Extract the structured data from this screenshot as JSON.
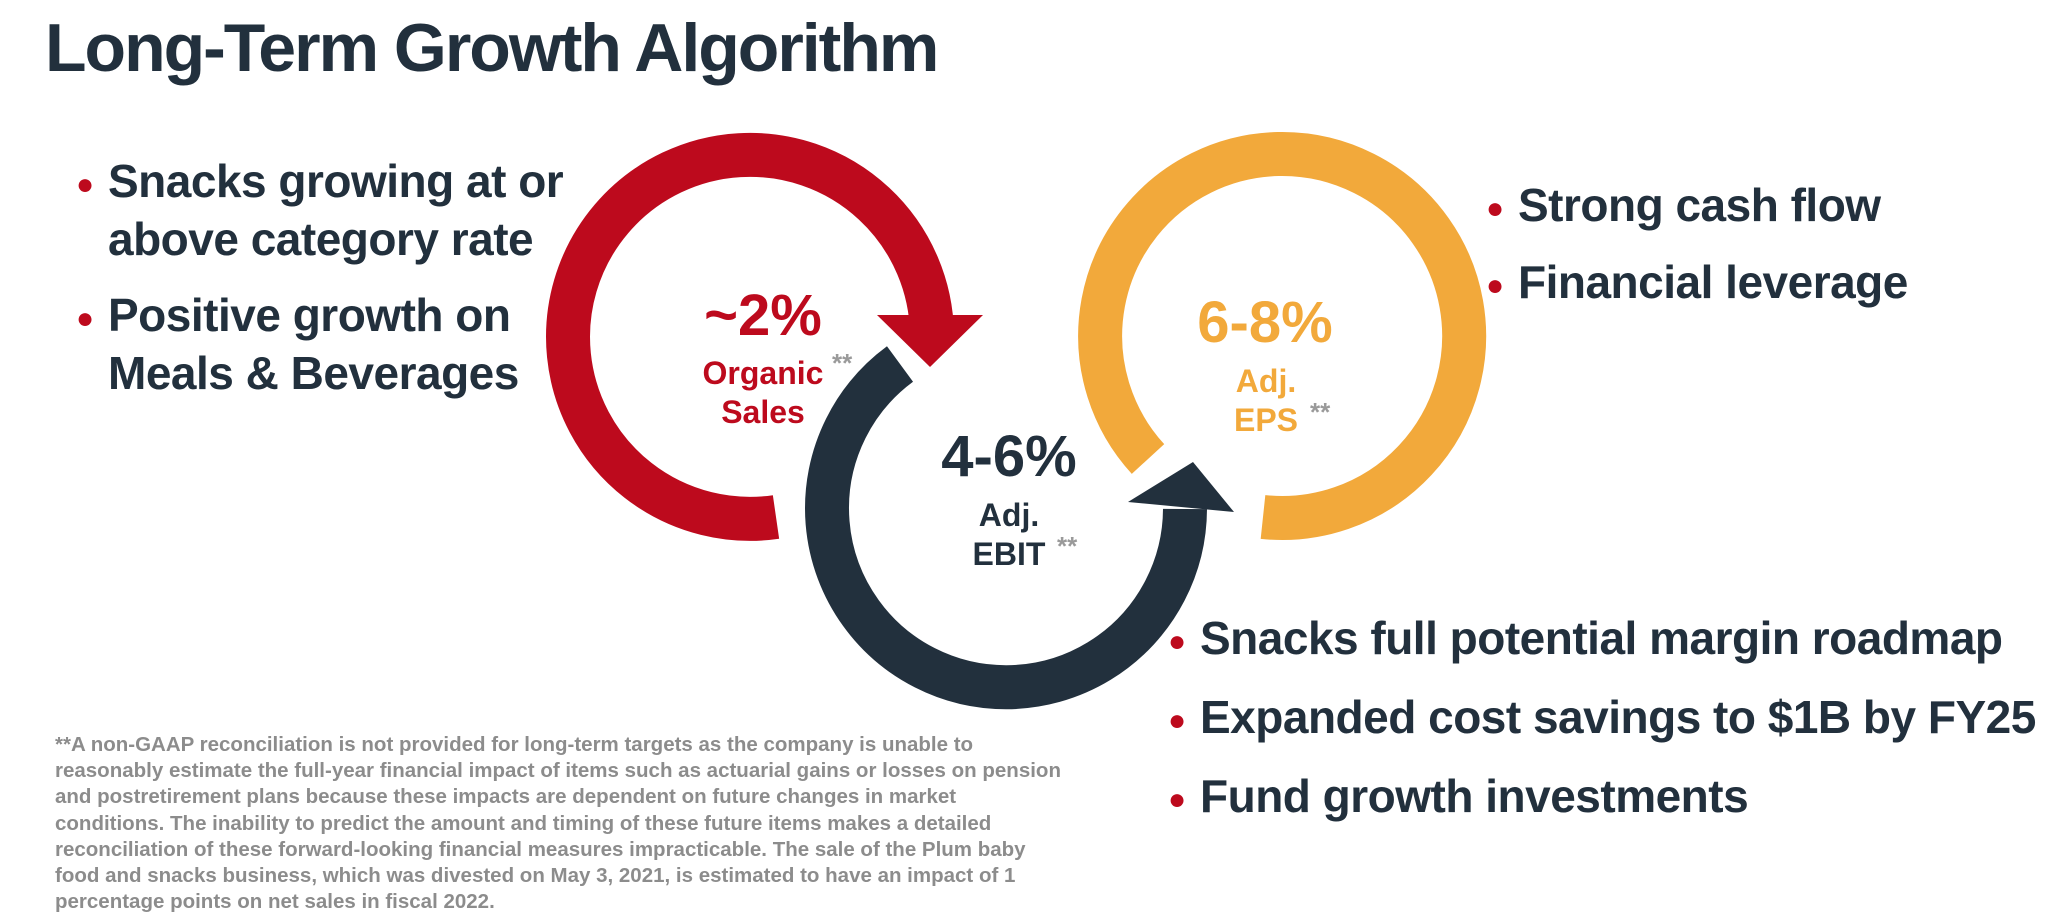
{
  "title": "Long-Term Growth Algorithm",
  "left_bullets": [
    "Snacks growing at or above category rate",
    "Positive growth on Meals & Beverages"
  ],
  "right_top_bullets": [
    "Strong cash flow",
    "Financial leverage"
  ],
  "right_bottom_bullets": [
    "Snacks full potential margin roadmap",
    "Expanded cost savings to $1B by FY25",
    "Fund growth investments"
  ],
  "diagram": {
    "organic_sales": {
      "value": "~2%",
      "label_line1": "Organic",
      "label_line2": "Sales",
      "marker": "**",
      "color": "#bd0a1d"
    },
    "adj_ebit": {
      "value": "4-6%",
      "label_line1": "Adj.",
      "label_line2": "EBIT",
      "marker": "**",
      "color": "#22303d"
    },
    "adj_eps": {
      "value": "6-8%",
      "label_line1": "Adj.",
      "label_line2": "EPS",
      "marker": "**",
      "color": "#f2a93b"
    }
  },
  "footnote": "**A non-GAAP reconciliation is not provided for long-term targets as the company is unable to reasonably estimate the full-year financial impact of items such as actuarial gains or losses on pension and postretirement plans because these impacts are dependent on future changes in market conditions. The inability to predict the amount and timing of these future items makes a detailed reconciliation of these forward-looking financial measures impracticable. The sale of the Plum baby food and snacks business, which was divested on May 3, 2021, is estimated to have an impact of 1 percentage points on net sales in fiscal 2022."
}
